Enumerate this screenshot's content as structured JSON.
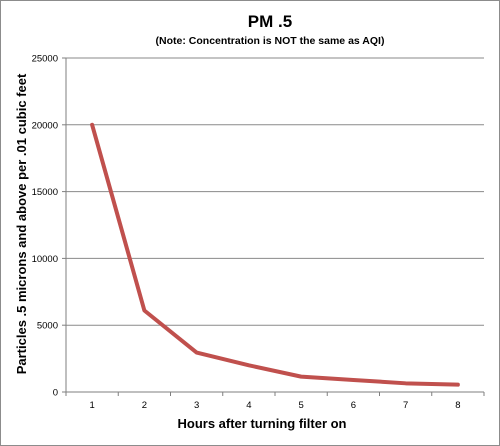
{
  "chart_data": {
    "type": "line",
    "title": "PM .5",
    "subtitle": "(Note: Concentration is NOT the same as AQI)",
    "xlabel": "Hours after turning filter on",
    "ylabel": "Particles .5 microns and above per .01 cubic feet",
    "x": [
      1,
      2,
      3,
      4,
      5,
      6,
      7,
      8
    ],
    "x_tick_labels": [
      "1",
      "2",
      "3",
      "4",
      "5",
      "6",
      "7",
      "8"
    ],
    "y_tick_labels": [
      "0",
      "5000",
      "10000",
      "15000",
      "20000",
      "25000"
    ],
    "y_ticks": [
      0,
      5000,
      10000,
      15000,
      20000,
      25000
    ],
    "ylim": [
      0,
      25000
    ],
    "grid": "horizontal",
    "legend": "none",
    "series": [
      {
        "values": [
          20000,
          6100,
          2950,
          2000,
          1150,
          900,
          650,
          550
        ],
        "color": "#c0504d"
      }
    ]
  }
}
